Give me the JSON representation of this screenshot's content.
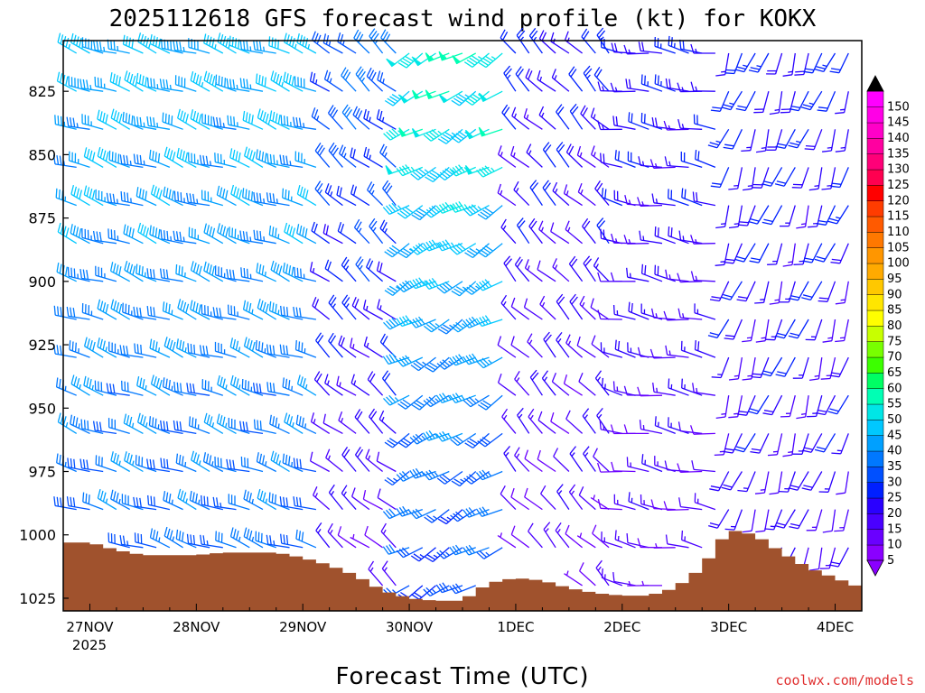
{
  "chart_data": {
    "type": "wind_barb_time_height",
    "title": "2025112618 GFS forecast wind profile (kt) for KOKX",
    "xlabel": "Forecast Time (UTC)",
    "ylabel": "",
    "credit": "coolwx.com/models",
    "y_axis": {
      "unit": "hPa",
      "ticks": [
        "825",
        "850",
        "875",
        "900",
        "925",
        "950",
        "975",
        "1000",
        "1025"
      ],
      "tick_values": [
        825,
        850,
        875,
        900,
        925,
        950,
        975,
        1000,
        1025
      ],
      "range": [
        805,
        1030
      ]
    },
    "x_axis": {
      "ticks": [
        "27NOV",
        "28NOV",
        "29NOV",
        "30NOV",
        "1DEC",
        "2DEC",
        "3DEC",
        "4DEC"
      ],
      "year_label": "2025",
      "tick_hours": [
        6,
        30,
        54,
        78,
        102,
        126,
        150,
        174
      ],
      "range_hours": [
        0,
        180
      ],
      "step_hours": 3
    },
    "levels_hpa": [
      810,
      825,
      840,
      855,
      870,
      885,
      900,
      915,
      930,
      945,
      960,
      975,
      990,
      1005,
      1020
    ],
    "wind_regimes": [
      {
        "start_hour": 0,
        "end_hour": 60,
        "direction_deg": 290,
        "speed_upper_kt": 40,
        "speed_lower_kt": 30
      },
      {
        "start_hour": 60,
        "end_hour": 78,
        "direction_deg": 310,
        "speed_upper_kt": 30,
        "speed_lower_kt": 10
      },
      {
        "start_hour": 78,
        "end_hour": 102,
        "direction_deg": 240,
        "speed_upper_kt": 50,
        "speed_lower_kt": 25
      },
      {
        "start_hour": 102,
        "end_hour": 126,
        "direction_deg": 315,
        "speed_upper_kt": 20,
        "speed_lower_kt": 10
      },
      {
        "start_hour": 126,
        "end_hour": 150,
        "direction_deg": 280,
        "speed_upper_kt": 20,
        "speed_lower_kt": 10
      },
      {
        "start_hour": 150,
        "end_hour": 180,
        "direction_deg": 200,
        "speed_upper_kt": 20,
        "speed_lower_kt": 15
      }
    ],
    "surface_pressure": {
      "hours": [
        0,
        6,
        12,
        18,
        24,
        30,
        36,
        42,
        48,
        54,
        60,
        66,
        72,
        78,
        84,
        90,
        96,
        102,
        108,
        114,
        120,
        126,
        132,
        138,
        144,
        150,
        156,
        162,
        168,
        174,
        180
      ],
      "values": [
        1003,
        1003,
        1006,
        1008,
        1008,
        1008,
        1007,
        1007,
        1007,
        1009,
        1012,
        1016,
        1022,
        1025,
        1026,
        1026,
        1019,
        1017,
        1018,
        1021,
        1023,
        1024,
        1024,
        1021,
        1013,
        998,
        1000,
        1007,
        1013,
        1017,
        1021
      ]
    },
    "colorbar": {
      "label_values": [
        5,
        10,
        15,
        20,
        25,
        30,
        35,
        40,
        45,
        50,
        55,
        60,
        65,
        70,
        75,
        80,
        85,
        90,
        95,
        100,
        105,
        110,
        115,
        120,
        125,
        130,
        135,
        140,
        145,
        150
      ],
      "labels": [
        "5",
        "10",
        "15",
        "20",
        "25",
        "30",
        "35",
        "40",
        "45",
        "50",
        "55",
        "60",
        "65",
        "70",
        "75",
        "80",
        "85",
        "90",
        "95",
        "100",
        "105",
        "110",
        "115",
        "120",
        "125",
        "130",
        "135",
        "140",
        "145",
        "150"
      ],
      "colors": [
        "#8a00ff",
        "#6a00ff",
        "#4a00ff",
        "#2a00ff",
        "#0020ff",
        "#0050ff",
        "#0078ff",
        "#00a0ff",
        "#00c8ff",
        "#00e6e6",
        "#00ffb4",
        "#00ff64",
        "#3cff00",
        "#78ff00",
        "#c8ff00",
        "#ffff00",
        "#ffe600",
        "#ffc800",
        "#ffaa00",
        "#ff9600",
        "#ff7800",
        "#ff5a00",
        "#ff3c00",
        "#ff0000",
        "#ff0050",
        "#ff0078",
        "#ff00a0",
        "#ff00c8",
        "#ff00e6",
        "#ff00ff"
      ],
      "over_color": "#000000",
      "under_color": "#8a00ff"
    },
    "terrain_color": "#a0522d"
  }
}
